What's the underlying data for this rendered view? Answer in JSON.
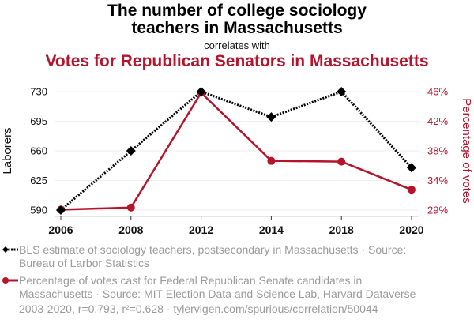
{
  "header": {
    "title": "The number of college sociology teachers in Massachusetts",
    "title_line1": "The number of college sociology",
    "title_line2": "teachers in Massachusetts",
    "subtitle": "correlates with",
    "title2": "Votes for Republican Senators in Massachusetts"
  },
  "colors": {
    "series1": "#000000",
    "series2": "#b5142c",
    "grid": "#eeeeee",
    "legend_text": "#9a9a9a"
  },
  "chart_data": {
    "type": "line",
    "title": "The number of college sociology teachers in Massachusetts correlates with Votes for Republican Senators in Massachusetts",
    "categories": [
      "2006",
      "2008",
      "2012",
      "2014",
      "2018",
      "2020"
    ],
    "xlabel": "",
    "ylabel": "Laborers",
    "y2label": "Percentage of votes",
    "yticks": [
      "590",
      "625",
      "660",
      "695",
      "730"
    ],
    "y2ticks": [
      "29%",
      "34%",
      "38%",
      "42%",
      "46%"
    ],
    "ylim": [
      590,
      730
    ],
    "y2lim": [
      29.95,
      45.95
    ],
    "grid": true,
    "series": [
      {
        "name": "BLS estimate of sociology teachers, postsecondary in Massachusetts",
        "axis": "left",
        "marker": "diamond",
        "style": "dotted",
        "values": [
          590,
          660,
          730,
          700,
          730,
          640
        ]
      },
      {
        "name": "Percentage of votes cast for Federal Republican Senate candidates in Massachusetts",
        "axis": "right",
        "marker": "circle",
        "style": "solid",
        "values": [
          30.0,
          30.3,
          45.8,
          36.6,
          36.5,
          32.7
        ]
      }
    ]
  },
  "legend": {
    "item1_line1": "BLS estimate of sociology teachers, postsecondary in Massachusetts · Source:",
    "item1_line2": "Bureau of Larbor Statistics",
    "item2_line1": "Percentage of votes cast for Federal Republican Senate candidates in",
    "item2_line2": "Massachusetts · Source: MIT Election Data and Science Lab, Harvard Dataverse"
  },
  "footer": {
    "text": "2003-2020, r=0.793, r²=0.628 · tylervigen.com/spurious/correlation/50044"
  }
}
